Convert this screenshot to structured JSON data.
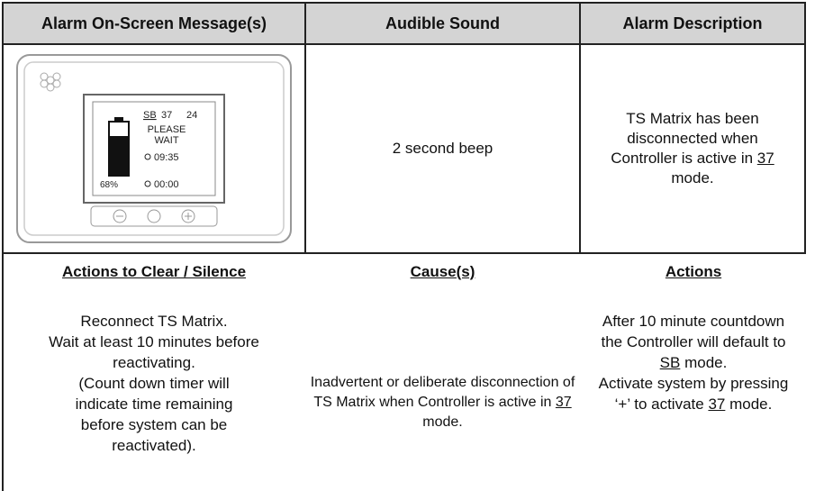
{
  "header": {
    "col1": "Alarm On-Screen Message(s)",
    "col2": "Audible Sound",
    "col3": "Alarm Description"
  },
  "screen": {
    "mode": "SB",
    "setpoint": "37",
    "reading": "24",
    "message_line1": "PLEASE",
    "message_line2": "WAIT",
    "timer1": "09:35",
    "battery": "68%",
    "timer2": "00:00"
  },
  "audible_sound": "2 second beep",
  "description": {
    "before": "TS Matrix has been disconnected when Controller is active in",
    "mode": "37",
    "after": "mode."
  },
  "actions_to_clear": {
    "heading": "Actions to Clear / Silence",
    "line1": "Reconnect TS Matrix.",
    "line2": "Wait at least 10 minutes before reactivating.",
    "line3": "(Count down timer will indicate time remaining before system can be reactivated)."
  },
  "cause": {
    "heading": "Cause(s)",
    "before": "Inadvertent or deliberate disconnection of TS Matrix when Controller is active in",
    "mode": "37",
    "after": "mode."
  },
  "actions": {
    "heading": "Actions",
    "part1_before": "After 10 minute countdown the Controller will default to",
    "part1_mode": "SB",
    "part1_after": "mode.",
    "part2_before": "Activate system by pressing ‘+’ to activate",
    "part2_mode": "37",
    "part2_after": "mode."
  }
}
